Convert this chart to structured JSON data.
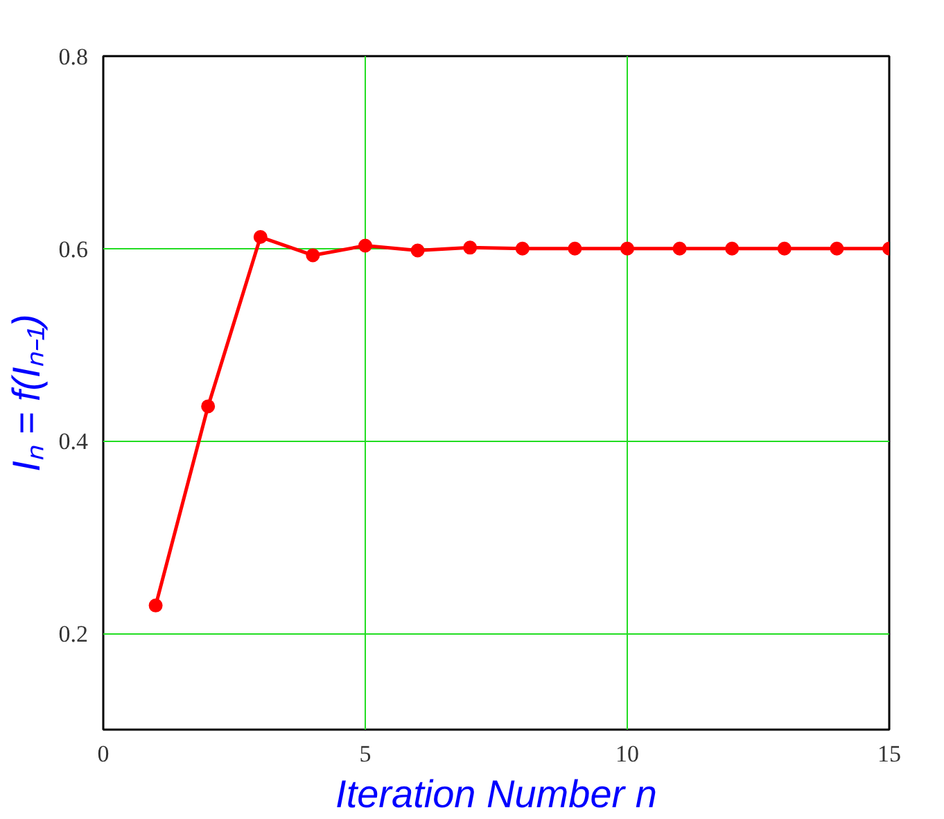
{
  "chart_data": {
    "type": "line",
    "xlabel": "Iteration Number n",
    "ylabel": "Iₙ = f(Iₙ₋₁)",
    "x": [
      1,
      2,
      3,
      4,
      5,
      6,
      7,
      8,
      9,
      10,
      11,
      12,
      13,
      14,
      15
    ],
    "series": [
      {
        "color": "#ff0000",
        "values": [
          0.229,
          0.436,
          0.612,
          0.593,
          0.603,
          0.598,
          0.601,
          0.6,
          0.6,
          0.6,
          0.6,
          0.6,
          0.6,
          0.6,
          0.6
        ]
      }
    ],
    "xlim": [
      0,
      15
    ],
    "ylim": [
      0.1,
      0.8
    ],
    "xticks": [
      0,
      5,
      10,
      15
    ],
    "yticks": [
      0.2,
      0.4,
      0.6,
      0.8
    ],
    "grid": true,
    "marker": "circle",
    "line_style": "solid"
  }
}
